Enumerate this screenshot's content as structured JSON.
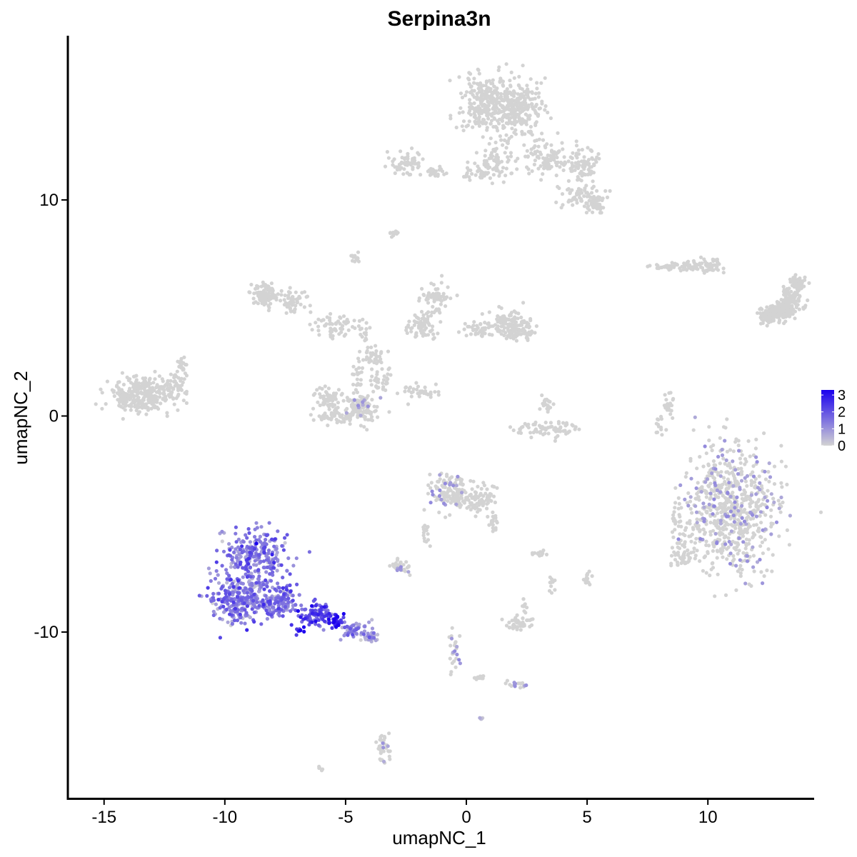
{
  "chart_data": {
    "type": "scatter",
    "title": "Serpina3n",
    "xlabel": "umapNC_1",
    "ylabel": "umapNC_2",
    "xlim": [
      -16.5,
      14.4
    ],
    "ylim": [
      -17.7,
      17.6
    ],
    "x_ticks": [
      -15,
      -10,
      -5,
      0,
      5,
      10
    ],
    "x_tick_labels": [
      "-15",
      "-10",
      "-5",
      "0",
      "5",
      "10"
    ],
    "y_ticks": [
      -10,
      0,
      10
    ],
    "y_tick_labels": [
      "-10",
      "0",
      "10"
    ],
    "grid": false,
    "color_scale": {
      "low": "#d3d3d3",
      "high": "#1a00ee",
      "min": 0,
      "max": 3.3
    },
    "legend": {
      "position": "right",
      "ticks": [
        0,
        1,
        2,
        3
      ],
      "tick_labels": [
        "0",
        "1",
        "2",
        "3"
      ]
    },
    "clusters": [
      {
        "cx": 12.6,
        "cy": 4.7,
        "rx": 0.45,
        "ry": 0.25,
        "n": 60,
        "expr": 0.0
      },
      {
        "cx": 13.1,
        "cy": 5.0,
        "rx": 0.45,
        "ry": 0.3,
        "n": 60,
        "expr": 0.0
      },
      {
        "cx": 13.5,
        "cy": 5.5,
        "rx": 0.4,
        "ry": 0.45,
        "n": 70,
        "expr": 0.0
      },
      {
        "cx": 13.7,
        "cy": 6.2,
        "rx": 0.3,
        "ry": 0.35,
        "n": 50,
        "expr": 0.0
      },
      {
        "cx": 13.2,
        "cy": 4.8,
        "rx": 0.4,
        "ry": 0.3,
        "n": 80,
        "expr": 0.0
      },
      {
        "cx": 12.6,
        "cy": 4.5,
        "rx": 0.35,
        "ry": 0.3,
        "n": 40,
        "expr": 0.0
      },
      {
        "cx": 11.0,
        "cy": -4.3,
        "rx": 1.7,
        "ry": 2.6,
        "n": 700,
        "expr": 0.02
      },
      {
        "cx": 8.8,
        "cy": -5.3,
        "rx": 0.5,
        "ry": 0.9,
        "n": 40,
        "expr": 0.0
      },
      {
        "cx": 9.0,
        "cy": -6.5,
        "rx": 0.5,
        "ry": 0.5,
        "n": 40,
        "expr": 0.0
      },
      {
        "cx": -13.4,
        "cy": 1.0,
        "rx": 1.2,
        "ry": 0.7,
        "n": 300,
        "expr": 0.0
      },
      {
        "cx": -12.0,
        "cy": 1.5,
        "rx": 0.5,
        "ry": 0.4,
        "n": 40,
        "expr": 0.0
      },
      {
        "cx": -11.8,
        "cy": 2.3,
        "rx": 0.25,
        "ry": 0.4,
        "n": 20,
        "expr": 0.0
      },
      {
        "cx": -8.3,
        "cy": 5.6,
        "rx": 0.5,
        "ry": 0.5,
        "n": 100,
        "expr": 0.0
      },
      {
        "cx": -7.2,
        "cy": 5.3,
        "rx": 0.5,
        "ry": 0.5,
        "n": 50,
        "expr": 0.0
      },
      {
        "cx": -5.4,
        "cy": 4.2,
        "rx": 0.8,
        "ry": 0.5,
        "n": 60,
        "expr": 0.0
      },
      {
        "cx": -4.2,
        "cy": 4.0,
        "rx": 0.3,
        "ry": 0.5,
        "n": 15,
        "expr": 0.0
      },
      {
        "cx": -3.8,
        "cy": 2.7,
        "rx": 0.5,
        "ry": 0.5,
        "n": 40,
        "expr": 0.0
      },
      {
        "cx": -1.8,
        "cy": 4.2,
        "rx": 0.7,
        "ry": 0.5,
        "n": 70,
        "expr": 0.0
      },
      {
        "cx": -1.2,
        "cy": 5.5,
        "rx": 0.5,
        "ry": 0.6,
        "n": 60,
        "expr": 0.0
      },
      {
        "cx": 0.5,
        "cy": 4.0,
        "rx": 0.6,
        "ry": 0.3,
        "n": 40,
        "expr": 0.0
      },
      {
        "cx": 1.8,
        "cy": 4.3,
        "rx": 0.9,
        "ry": 0.5,
        "n": 110,
        "expr": 0.0
      },
      {
        "cx": 2.2,
        "cy": 3.8,
        "rx": 0.5,
        "ry": 0.3,
        "n": 50,
        "expr": 0.0
      },
      {
        "cx": -5.7,
        "cy": 0.8,
        "rx": 0.6,
        "ry": 0.5,
        "n": 70,
        "expr": 0.0
      },
      {
        "cx": -4.3,
        "cy": 0.4,
        "rx": 0.6,
        "ry": 0.7,
        "n": 110,
        "expr": 0.01
      },
      {
        "cx": -5.3,
        "cy": 0.0,
        "rx": 0.9,
        "ry": 0.3,
        "n": 50,
        "expr": 0.0
      },
      {
        "cx": -4.5,
        "cy": 1.9,
        "rx": 0.25,
        "ry": 0.5,
        "n": 20,
        "expr": 0.0
      },
      {
        "cx": -1.9,
        "cy": 1.1,
        "rx": 0.8,
        "ry": 0.3,
        "n": 35,
        "expr": 0.0
      },
      {
        "cx": -3.5,
        "cy": 1.6,
        "rx": 0.4,
        "ry": 0.4,
        "n": 25,
        "expr": 0.0
      },
      {
        "cx": 3.2,
        "cy": -0.6,
        "rx": 1.1,
        "ry": 0.3,
        "n": 70,
        "expr": 0.0
      },
      {
        "cx": 3.3,
        "cy": 0.5,
        "rx": 0.3,
        "ry": 0.4,
        "n": 20,
        "expr": 0.0
      },
      {
        "cx": 8.3,
        "cy": 0.4,
        "rx": 0.25,
        "ry": 0.6,
        "n": 25,
        "expr": 0.0
      },
      {
        "cx": 8.0,
        "cy": -0.5,
        "rx": 0.2,
        "ry": 0.4,
        "n": 12,
        "expr": 0.0
      },
      {
        "cx": 8.3,
        "cy": 6.9,
        "rx": 0.6,
        "ry": 0.15,
        "n": 30,
        "expr": 0.0
      },
      {
        "cx": 9.3,
        "cy": 6.9,
        "rx": 0.5,
        "ry": 0.2,
        "n": 30,
        "expr": 0.0
      },
      {
        "cx": 10.0,
        "cy": 7.0,
        "rx": 0.6,
        "ry": 0.3,
        "n": 50,
        "expr": 0.0
      },
      {
        "cx": 0.8,
        "cy": 14.5,
        "rx": 0.9,
        "ry": 1.2,
        "n": 250,
        "expr": 0.0
      },
      {
        "cx": 2.1,
        "cy": 14.2,
        "rx": 0.9,
        "ry": 1.2,
        "n": 250,
        "expr": 0.0
      },
      {
        "cx": 1.2,
        "cy": 11.8,
        "rx": 0.7,
        "ry": 0.8,
        "n": 70,
        "expr": 0.0
      },
      {
        "cx": 3.3,
        "cy": 12.0,
        "rx": 0.8,
        "ry": 0.8,
        "n": 90,
        "expr": 0.0
      },
      {
        "cx": 4.8,
        "cy": 11.6,
        "rx": 0.7,
        "ry": 0.6,
        "n": 80,
        "expr": 0.0
      },
      {
        "cx": 4.8,
        "cy": 10.2,
        "rx": 0.8,
        "ry": 0.5,
        "n": 70,
        "expr": 0.0
      },
      {
        "cx": 5.3,
        "cy": 9.7,
        "rx": 0.4,
        "ry": 0.4,
        "n": 40,
        "expr": 0.0
      },
      {
        "cx": -2.4,
        "cy": 11.7,
        "rx": 0.8,
        "ry": 0.5,
        "n": 60,
        "expr": 0.0
      },
      {
        "cx": -1.2,
        "cy": 11.3,
        "rx": 0.5,
        "ry": 0.2,
        "n": 25,
        "expr": 0.0
      },
      {
        "cx": 0.6,
        "cy": 11.2,
        "rx": 0.6,
        "ry": 0.25,
        "n": 30,
        "expr": 0.0
      },
      {
        "cx": -3.0,
        "cy": 8.5,
        "rx": 0.2,
        "ry": 0.15,
        "n": 12,
        "expr": 0.0
      },
      {
        "cx": -4.6,
        "cy": 7.3,
        "rx": 0.15,
        "ry": 0.25,
        "n": 12,
        "expr": 0.0
      },
      {
        "cx": -0.6,
        "cy": -3.5,
        "rx": 0.8,
        "ry": 0.8,
        "n": 150,
        "expr": 0.01
      },
      {
        "cx": 0.6,
        "cy": -3.9,
        "rx": 0.6,
        "ry": 0.5,
        "n": 60,
        "expr": 0.0
      },
      {
        "cx": 1.1,
        "cy": -4.9,
        "rx": 0.2,
        "ry": 0.5,
        "n": 20,
        "expr": 0.0
      },
      {
        "cx": -2.7,
        "cy": -7.0,
        "rx": 0.4,
        "ry": 0.25,
        "n": 30,
        "expr": 0.02
      },
      {
        "cx": -1.7,
        "cy": -5.5,
        "rx": 0.15,
        "ry": 0.7,
        "n": 15,
        "expr": 0.0
      },
      {
        "cx": 2.1,
        "cy": -9.6,
        "rx": 0.5,
        "ry": 0.3,
        "n": 40,
        "expr": 0.0
      },
      {
        "cx": 2.4,
        "cy": -8.9,
        "rx": 0.2,
        "ry": 0.4,
        "n": 12,
        "expr": 0.0
      },
      {
        "cx": 3.0,
        "cy": -6.4,
        "rx": 0.3,
        "ry": 0.15,
        "n": 12,
        "expr": 0.0
      },
      {
        "cx": 3.5,
        "cy": -7.8,
        "rx": 0.15,
        "ry": 0.3,
        "n": 10,
        "expr": 0.0
      },
      {
        "cx": 5.0,
        "cy": -7.5,
        "rx": 0.2,
        "ry": 0.3,
        "n": 15,
        "expr": 0.0
      },
      {
        "cx": -0.5,
        "cy": -10.9,
        "rx": 0.2,
        "ry": 1.0,
        "n": 25,
        "expr": 0.03
      },
      {
        "cx": 2.2,
        "cy": -12.4,
        "rx": 0.5,
        "ry": 0.15,
        "n": 20,
        "expr": 0.03
      },
      {
        "cx": 0.5,
        "cy": -12.1,
        "rx": 0.4,
        "ry": 0.1,
        "n": 10,
        "expr": 0.0
      },
      {
        "cx": 0.6,
        "cy": -14.0,
        "rx": 0.1,
        "ry": 0.1,
        "n": 6,
        "expr": 0.5
      },
      {
        "cx": -3.5,
        "cy": -15.3,
        "rx": 0.3,
        "ry": 0.7,
        "n": 40,
        "expr": 0.02
      },
      {
        "cx": -6.1,
        "cy": -16.3,
        "rx": 0.15,
        "ry": 0.1,
        "n": 5,
        "expr": 0.0
      },
      {
        "cx": -8.6,
        "cy": -6.5,
        "rx": 1.3,
        "ry": 1.2,
        "n": 260,
        "expr": 1.3
      },
      {
        "cx": -9.4,
        "cy": -8.5,
        "rx": 1.1,
        "ry": 1.0,
        "n": 260,
        "expr": 1.3
      },
      {
        "cx": -7.7,
        "cy": -8.6,
        "rx": 0.8,
        "ry": 0.7,
        "n": 140,
        "expr": 1.4
      },
      {
        "cx": -6.2,
        "cy": -9.2,
        "rx": 0.7,
        "ry": 0.5,
        "n": 90,
        "expr": 1.9
      },
      {
        "cx": -5.4,
        "cy": -9.5,
        "rx": 0.3,
        "ry": 0.3,
        "n": 30,
        "expr": 3.0
      },
      {
        "cx": -4.6,
        "cy": -9.9,
        "rx": 0.6,
        "ry": 0.35,
        "n": 50,
        "expr": 0.9
      },
      {
        "cx": -4.0,
        "cy": -10.3,
        "rx": 0.3,
        "ry": 0.2,
        "n": 25,
        "expr": 0.6
      },
      {
        "cx": -6.8,
        "cy": -9.9,
        "rx": 0.3,
        "ry": 0.2,
        "n": 8,
        "expr": 3.0
      }
    ]
  }
}
